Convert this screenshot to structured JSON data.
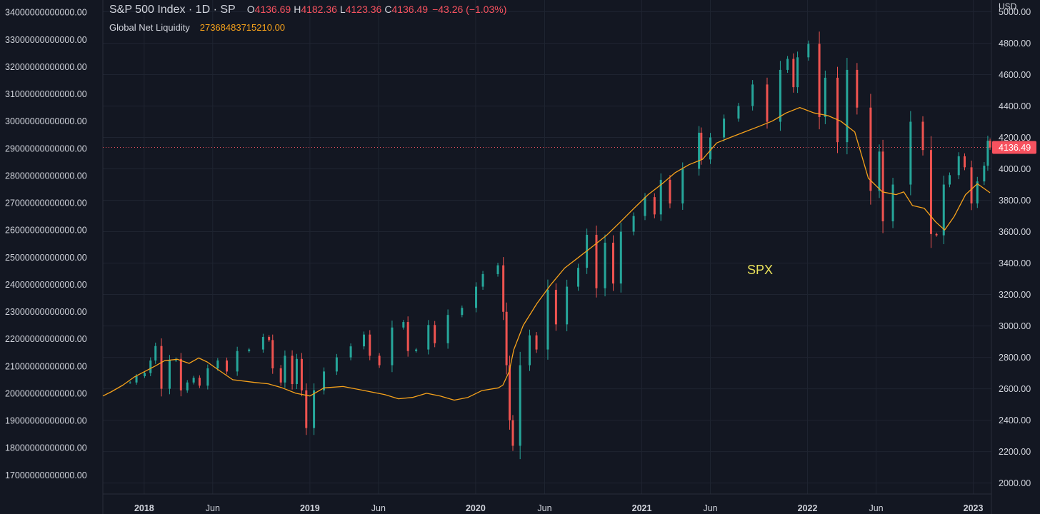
{
  "legend": {
    "title": "S&P 500 Index · 1D · SP",
    "open_key": "O",
    "open": "4136.69",
    "high_key": "H",
    "high": "4182.36",
    "low_key": "L",
    "low": "4123.36",
    "close_key": "C",
    "close": "4136.49",
    "change": "−43.26 (−1.03%)",
    "liquidity_name": "Global Net Liquidity",
    "liquidity_value": "27368483715210.00"
  },
  "unit_label": "USD",
  "price_tag": "4136.49",
  "colors": {
    "background": "#131722",
    "grid": "#1f2431",
    "text": "#d1d4dc",
    "up_candle": "#26a69a",
    "down_candle": "#ef5350",
    "liquidity_line": "#f7a21b",
    "last_price": "#f7525f",
    "annotation": "#e8e05a"
  },
  "chart_data": {
    "type": "line",
    "title": "S&P 500 Index · 1D · SP",
    "annotations": [
      "SPX"
    ],
    "grid": true,
    "legend_placement": "top-left",
    "x_tick_labels": [
      "2018",
      "Jun",
      "2019",
      "Jun",
      "2020",
      "Jun",
      "2021",
      "Jun",
      "2022",
      "Jun",
      "2023"
    ],
    "x_range": [
      "2017-10-02",
      "2023-02-10"
    ],
    "left_axis": {
      "series": "Global Net Liquidity",
      "ylim": [
        16300000000000,
        34450000000000
      ],
      "ticks": [
        "34000000000000.00",
        "33000000000000.00",
        "32000000000000.00",
        "31000000000000.00",
        "30000000000000.00",
        "29000000000000.00",
        "28000000000000.00",
        "27000000000000.00",
        "26000000000000.00",
        "25000000000000.00",
        "24000000000000.00",
        "23000000000000.00",
        "22000000000000.00",
        "21000000000000.00",
        "20000000000000.00",
        "19000000000000.00",
        "18000000000000.00",
        "17000000000000.00"
      ]
    },
    "right_axis": {
      "series": "S&P 500 Index",
      "unit": "USD",
      "ylim": [
        1930,
        5075
      ],
      "ticks": [
        "5000.00",
        "4800.00",
        "4600.00",
        "4400.00",
        "4200.00",
        "4000.00",
        "3800.00",
        "3600.00",
        "3400.00",
        "3200.00",
        "3000.00",
        "2800.00",
        "2600.00",
        "2400.00",
        "2200.00",
        "2000.00"
      ]
    },
    "series": [
      {
        "name": "S&P 500 Index",
        "axis": "right",
        "style": "candles",
        "x": [
          "2017-12-01",
          "2017-12-15",
          "2018-01-02",
          "2018-01-15",
          "2018-01-26",
          "2018-02-08",
          "2018-02-26",
          "2018-03-12",
          "2018-03-23",
          "2018-04-06",
          "2018-04-20",
          "2018-05-03",
          "2018-05-21",
          "2018-06-12",
          "2018-07-02",
          "2018-07-25",
          "2018-08-20",
          "2018-09-20",
          "2018-10-03",
          "2018-10-11",
          "2018-10-29",
          "2018-11-07",
          "2018-11-23",
          "2018-12-03",
          "2018-12-14",
          "2018-12-24",
          "2019-01-10",
          "2019-02-01",
          "2019-03-01",
          "2019-04-01",
          "2019-04-30",
          "2019-05-13",
          "2019-06-03",
          "2019-07-01",
          "2019-07-26",
          "2019-08-05",
          "2019-08-23",
          "2019-09-19",
          "2019-10-03",
          "2019-11-01",
          "2019-12-02",
          "2020-01-02",
          "2020-01-17",
          "2020-02-19",
          "2020-03-02",
          "2020-03-09",
          "2020-03-16",
          "2020-03-23",
          "2020-04-08",
          "2020-04-29",
          "2020-05-14",
          "2020-06-08",
          "2020-06-26",
          "2020-07-20",
          "2020-08-14",
          "2020-09-02",
          "2020-09-23",
          "2020-10-12",
          "2020-10-30",
          "2020-11-16",
          "2020-12-14",
          "2021-01-08",
          "2021-01-29",
          "2021-02-12",
          "2021-03-04",
          "2021-04-01",
          "2021-05-07",
          "2021-05-12",
          "2021-06-01",
          "2021-07-01",
          "2021-08-02",
          "2021-09-02",
          "2021-10-04",
          "2021-11-02",
          "2021-11-18",
          "2021-12-01",
          "2021-12-10",
          "2022-01-03",
          "2022-01-27",
          "2022-02-09",
          "2022-03-08",
          "2022-03-29",
          "2022-04-20",
          "2022-05-20",
          "2022-06-08",
          "2022-06-16",
          "2022-07-08",
          "2022-08-16",
          "2022-09-12",
          "2022-09-30",
          "2022-10-12",
          "2022-10-28",
          "2022-11-10",
          "2022-11-30",
          "2022-12-13",
          "2022-12-28",
          "2023-01-10",
          "2023-01-25",
          "2023-02-02",
          "2023-02-07"
        ],
        "values": [
          2640,
          2680,
          2700,
          2780,
          2872,
          2600,
          2780,
          2790,
          2590,
          2640,
          2670,
          2620,
          2730,
          2780,
          2710,
          2840,
          2850,
          2930,
          2910,
          2730,
          2640,
          2810,
          2630,
          2790,
          2590,
          2350,
          2590,
          2710,
          2800,
          2870,
          2945,
          2810,
          2750,
          2990,
          3025,
          2840,
          2850,
          3006,
          2890,
          3070,
          3115,
          3250,
          3330,
          3386,
          3090,
          2750,
          2400,
          2237,
          2750,
          2940,
          2850,
          3230,
          3010,
          3250,
          3370,
          3580,
          3240,
          3530,
          3270,
          3600,
          3700,
          3820,
          3710,
          3930,
          3780,
          4000,
          4230,
          4060,
          4200,
          4320,
          4400,
          4537,
          4300,
          4630,
          4700,
          4520,
          4710,
          4796,
          4330,
          4580,
          4170,
          4630,
          4390,
          3860,
          4110,
          3666,
          3900,
          4300,
          4120,
          3585,
          3577,
          3900,
          3960,
          4080,
          4010,
          3780,
          3920,
          4020,
          4179,
          4136
        ]
      },
      {
        "name": "Global Net Liquidity",
        "axis": "left",
        "style": "line",
        "x": [
          "2017-10-02",
          "2017-10-20",
          "2017-11-15",
          "2017-12-10",
          "2018-01-02",
          "2018-01-25",
          "2018-02-15",
          "2018-03-15",
          "2018-04-10",
          "2018-05-01",
          "2018-05-20",
          "2018-06-10",
          "2018-07-15",
          "2018-09-01",
          "2018-10-01",
          "2018-11-01",
          "2018-12-01",
          "2019-01-01",
          "2019-02-01",
          "2019-03-15",
          "2019-05-01",
          "2019-06-15",
          "2019-07-15",
          "2019-08-15",
          "2019-09-15",
          "2019-10-15",
          "2019-11-15",
          "2019-12-15",
          "2020-01-15",
          "2020-02-20",
          "2020-03-01",
          "2020-03-15",
          "2020-03-25",
          "2020-04-15",
          "2020-05-15",
          "2020-06-15",
          "2020-07-15",
          "2020-08-15",
          "2020-09-15",
          "2020-10-15",
          "2020-11-15",
          "2020-12-15",
          "2021-01-15",
          "2021-02-15",
          "2021-03-15",
          "2021-04-15",
          "2021-05-15",
          "2021-06-15",
          "2021-07-15",
          "2021-08-15",
          "2021-09-15",
          "2021-10-15",
          "2021-11-15",
          "2021-12-15",
          "2022-01-15",
          "2022-02-15",
          "2022-03-15",
          "2022-04-15",
          "2022-05-15",
          "2022-06-15",
          "2022-07-15",
          "2022-08-01",
          "2022-08-20",
          "2022-09-15",
          "2022-10-10",
          "2022-10-30",
          "2022-11-20",
          "2022-12-15",
          "2023-01-10",
          "2023-02-07"
        ],
        "values": [
          19900000000000,
          20050000000000,
          20300000000000,
          20600000000000,
          20800000000000,
          21000000000000,
          21200000000000,
          21250000000000,
          21100000000000,
          21300000000000,
          21150000000000,
          20900000000000,
          20500000000000,
          20400000000000,
          20350000000000,
          20200000000000,
          20000000000000,
          19900000000000,
          20200000000000,
          20250000000000,
          20100000000000,
          19950000000000,
          19800000000000,
          19850000000000,
          20000000000000,
          19900000000000,
          19750000000000,
          19850000000000,
          20100000000000,
          20200000000000,
          20300000000000,
          20800000000000,
          21600000000000,
          22500000000000,
          23300000000000,
          24000000000000,
          24600000000000,
          25000000000000,
          25400000000000,
          25800000000000,
          26300000000000,
          26800000000000,
          27300000000000,
          27700000000000,
          28100000000000,
          28400000000000,
          28600000000000,
          29200000000000,
          29400000000000,
          29600000000000,
          29800000000000,
          30000000000000,
          30300000000000,
          30500000000000,
          30300000000000,
          30200000000000,
          30000000000000,
          29600000000000,
          27900000000000,
          27400000000000,
          27300000000000,
          27400000000000,
          26900000000000,
          26800000000000,
          26300000000000,
          26000000000000,
          26500000000000,
          27300000000000,
          27700000000000,
          27368483715210
        ]
      }
    ]
  }
}
